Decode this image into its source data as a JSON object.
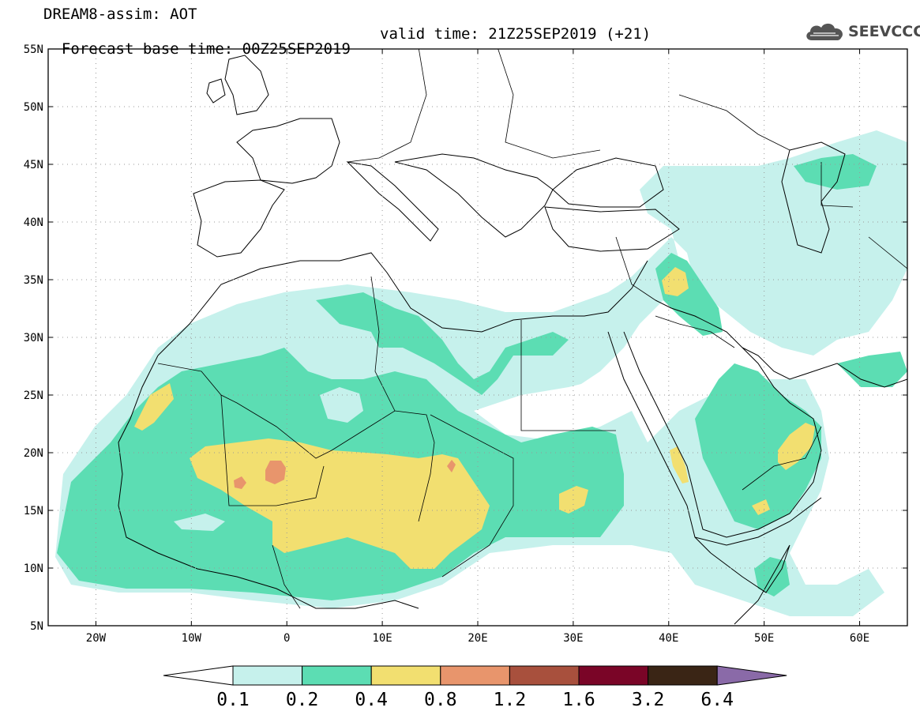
{
  "title": {
    "line1": "DREAM8-assim: AOT",
    "line2_base": "Forecast base time: 00Z25SEP2019",
    "line2_valid": "valid time: 21Z25SEP2019 (+21)"
  },
  "logo": {
    "text": "SEEVCCC",
    "icon": "cloud-icon"
  },
  "axes": {
    "lat_labels": [
      "55N",
      "50N",
      "45N",
      "40N",
      "35N",
      "30N",
      "25N",
      "20N",
      "15N",
      "10N",
      "5N"
    ],
    "lat_values": [
      55,
      50,
      45,
      40,
      35,
      30,
      25,
      20,
      15,
      10,
      5
    ],
    "lon_labels": [
      "20W",
      "10W",
      "0",
      "10E",
      "20E",
      "30E",
      "40E",
      "50E",
      "60E"
    ],
    "lon_values": [
      -20,
      -10,
      0,
      10,
      20,
      30,
      40,
      50,
      60
    ],
    "lon_range": [
      -25,
      65
    ],
    "lat_range": [
      5,
      55
    ],
    "grid": "dotted"
  },
  "colorbar": {
    "labels": [
      "0.1",
      "0.2",
      "0.4",
      "0.8",
      "1.2",
      "1.6",
      "3.2",
      "6.4"
    ],
    "colors": [
      "#ffffff",
      "#c6f1ec",
      "#5cddb3",
      "#f2df70",
      "#e8956c",
      "#a8503d",
      "#7a0527",
      "#3a2515",
      "#8a6aa8"
    ]
  },
  "chart_data": {
    "type": "heatmap",
    "variable": "AOT",
    "levels": [
      0.1,
      0.2,
      0.4,
      0.8,
      1.2,
      1.6,
      3.2,
      6.4
    ],
    "xlim": [
      -25,
      65
    ],
    "ylim": [
      5,
      55
    ]
  }
}
